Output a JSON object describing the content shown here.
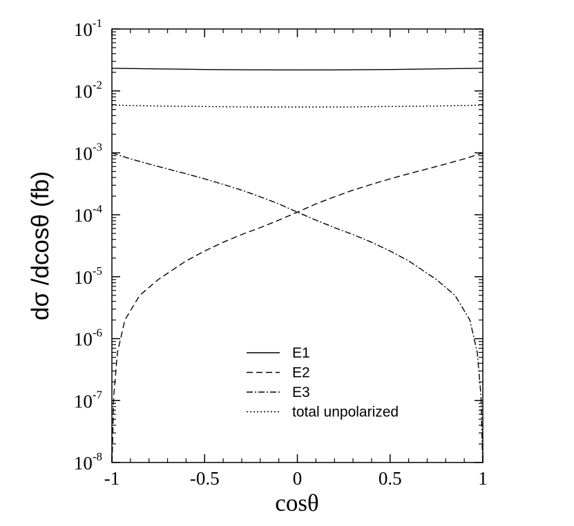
{
  "chart_data": {
    "type": "line",
    "xlabel": "cosθ",
    "ylabel": "dσ /dcosθ (fb)",
    "xlim": [
      -1,
      1
    ],
    "ylim": [
      1e-08,
      0.1
    ],
    "yscale": "log",
    "x_ticks": [
      -1,
      -0.5,
      0,
      0.5,
      1
    ],
    "x_tick_labels": [
      "-1",
      "-0.5",
      "0",
      "0.5",
      "1"
    ],
    "y_ticks": [
      {
        "base": "10",
        "exp": "-8"
      },
      {
        "base": "10",
        "exp": "-7"
      },
      {
        "base": "10",
        "exp": "-6"
      },
      {
        "base": "10",
        "exp": "-5"
      },
      {
        "base": "10",
        "exp": "-4"
      },
      {
        "base": "10",
        "exp": "-3"
      },
      {
        "base": "10",
        "exp": "-2"
      },
      {
        "base": "10",
        "exp": "-1"
      }
    ],
    "grid": false,
    "legend_position": "bottom-center",
    "series": [
      {
        "name": "E1",
        "style": "solid",
        "x": [
          -1,
          -0.75,
          -0.5,
          -0.25,
          0,
          0.25,
          0.5,
          0.75,
          1
        ],
        "y": [
          0.0232,
          0.0227,
          0.0222,
          0.0219,
          0.0218,
          0.0219,
          0.0222,
          0.0227,
          0.0232
        ]
      },
      {
        "name": "E2",
        "style": "dashed",
        "x": [
          -0.999,
          -0.99,
          -0.97,
          -0.93,
          -0.85,
          -0.75,
          -0.6,
          -0.5,
          -0.4,
          -0.3,
          -0.2,
          -0.1,
          0,
          0.1,
          0.2,
          0.3,
          0.4,
          0.5,
          0.6,
          0.7,
          0.8,
          0.9,
          0.95,
          1
        ],
        "y": [
          1e-08,
          1.2e-07,
          6e-07,
          2e-06,
          5e-06,
          9e-06,
          1.8e-05,
          2.6e-05,
          3.6e-05,
          4.8e-05,
          6.2e-05,
          8.2e-05,
          0.00011,
          0.00015,
          0.000195,
          0.00025,
          0.00031,
          0.00038,
          0.00046,
          0.00055,
          0.00066,
          0.0008,
          0.00089,
          0.001
        ]
      },
      {
        "name": "E3",
        "style": "dashdot",
        "x": [
          -1,
          -0.95,
          -0.9,
          -0.8,
          -0.7,
          -0.6,
          -0.5,
          -0.4,
          -0.3,
          -0.2,
          -0.1,
          0,
          0.1,
          0.2,
          0.3,
          0.4,
          0.5,
          0.6,
          0.75,
          0.85,
          0.93,
          0.97,
          0.99,
          0.999
        ],
        "y": [
          0.001,
          0.00089,
          0.0008,
          0.00066,
          0.00055,
          0.00046,
          0.00038,
          0.00031,
          0.00025,
          0.000195,
          0.00015,
          0.00011,
          8.2e-05,
          6.2e-05,
          4.8e-05,
          3.6e-05,
          2.6e-05,
          1.8e-05,
          9e-06,
          5e-06,
          2e-06,
          6e-07,
          1.2e-07,
          1e-08
        ]
      },
      {
        "name": "total unpolarized",
        "style": "dotted",
        "x": [
          -1,
          -0.75,
          -0.5,
          -0.25,
          0,
          0.25,
          0.5,
          0.75,
          1
        ],
        "y": [
          0.0059,
          0.0057,
          0.0056,
          0.0055,
          0.0055,
          0.0055,
          0.0056,
          0.0057,
          0.0059
        ]
      }
    ]
  }
}
